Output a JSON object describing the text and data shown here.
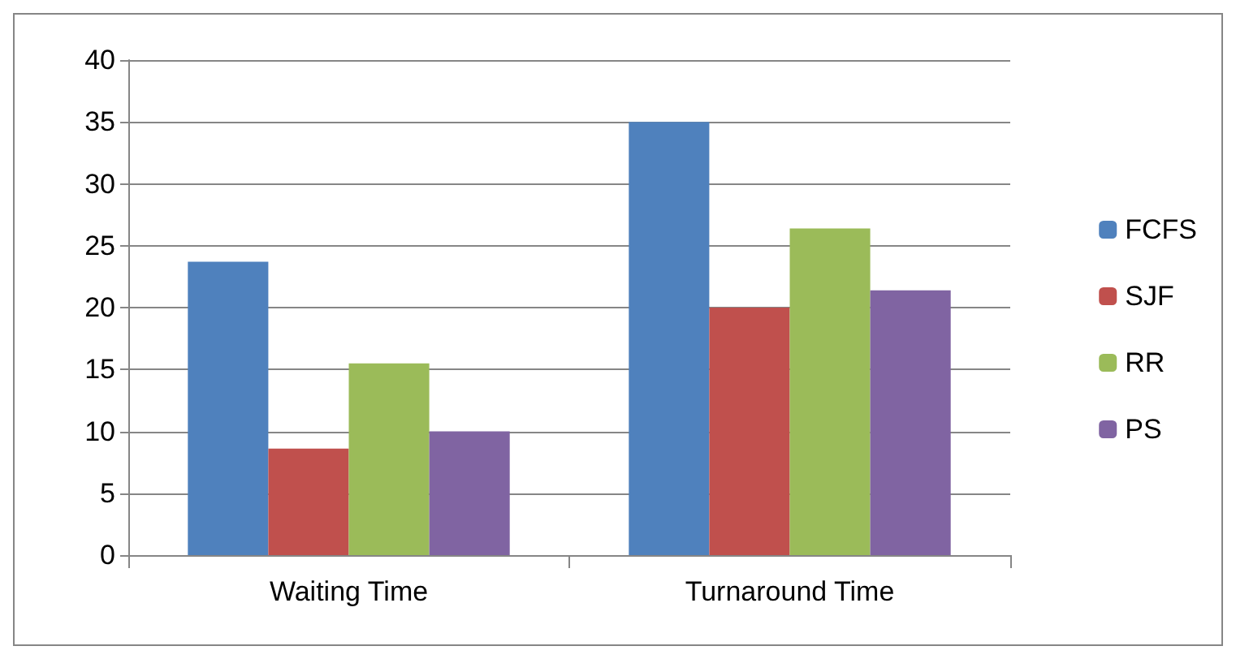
{
  "chart_data": {
    "type": "bar",
    "categories": [
      "Waiting Time",
      "Turnaround Time"
    ],
    "series": [
      {
        "name": "FCFS",
        "color": "#4f81bd",
        "values": [
          23.7,
          35
        ]
      },
      {
        "name": "SJF",
        "color": "#c0504d",
        "values": [
          8.6,
          20
        ]
      },
      {
        "name": "RR",
        "color": "#9bbb59",
        "values": [
          15.5,
          26.4
        ]
      },
      {
        "name": "PS",
        "color": "#8064a2",
        "values": [
          10,
          21.4
        ]
      }
    ],
    "ylim": [
      0,
      40
    ],
    "yticks": [
      0,
      5,
      10,
      15,
      20,
      25,
      30,
      35,
      40
    ],
    "grid": "y",
    "legend": "right"
  }
}
